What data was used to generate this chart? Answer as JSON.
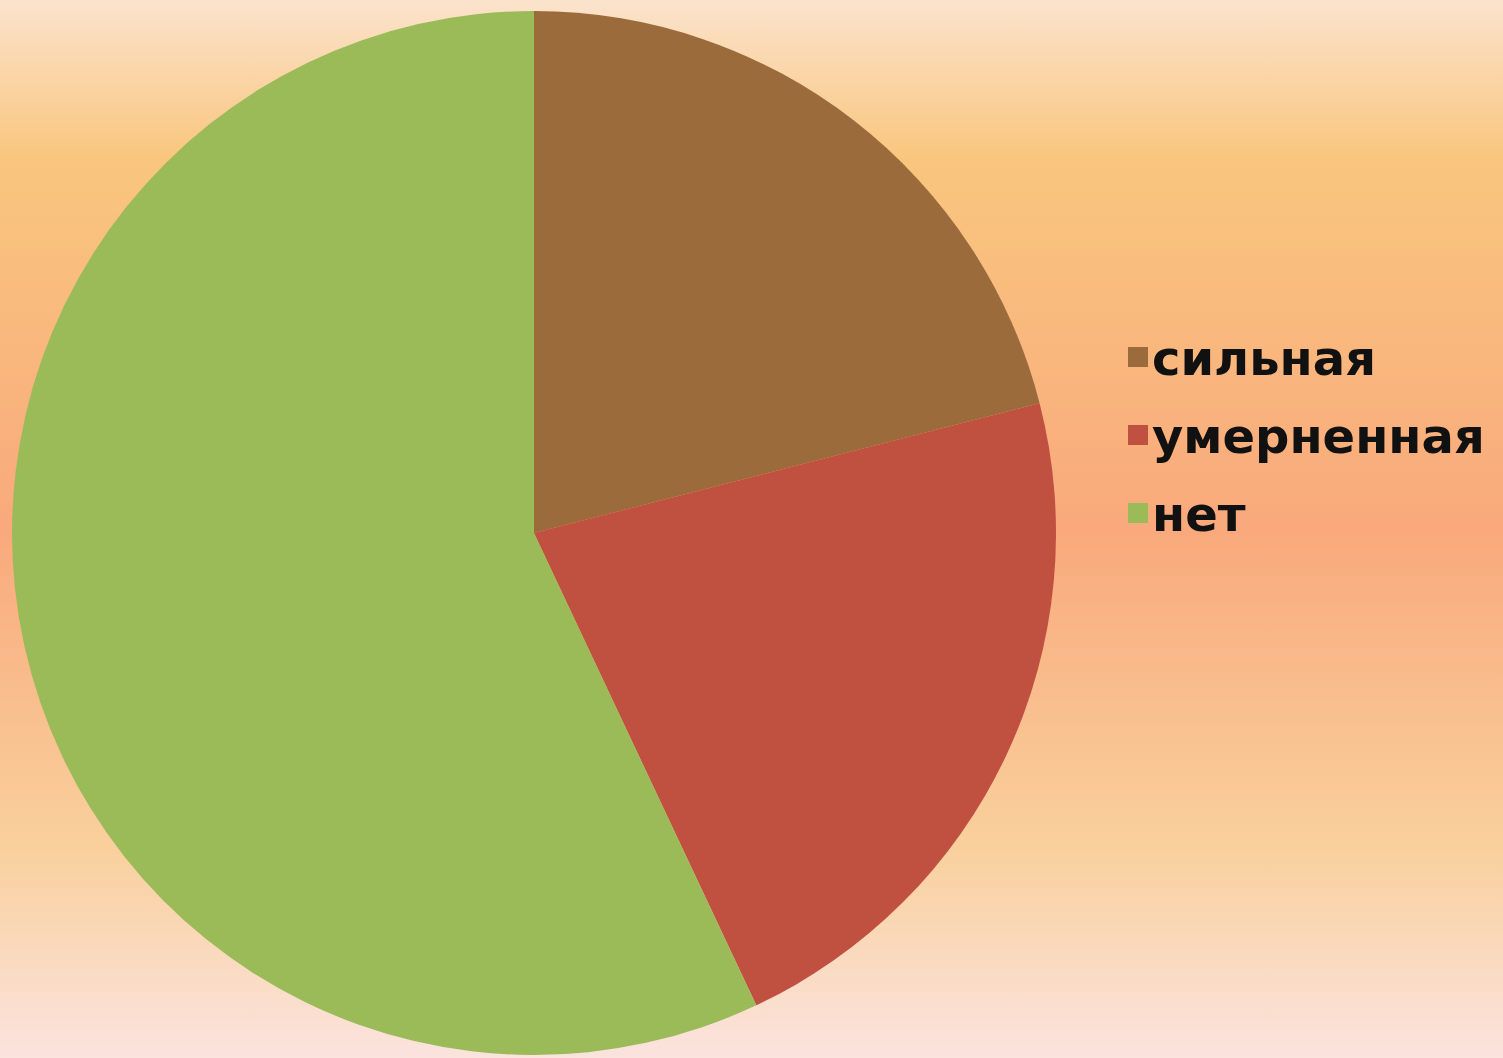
{
  "chart_data": {
    "type": "pie",
    "categories": [
      "сильная",
      "умерненная",
      "нет"
    ],
    "values": [
      21,
      22,
      57
    ],
    "colors": [
      "#9b6b3c",
      "#c0503f",
      "#9bbb59"
    ],
    "legend": "right"
  }
}
